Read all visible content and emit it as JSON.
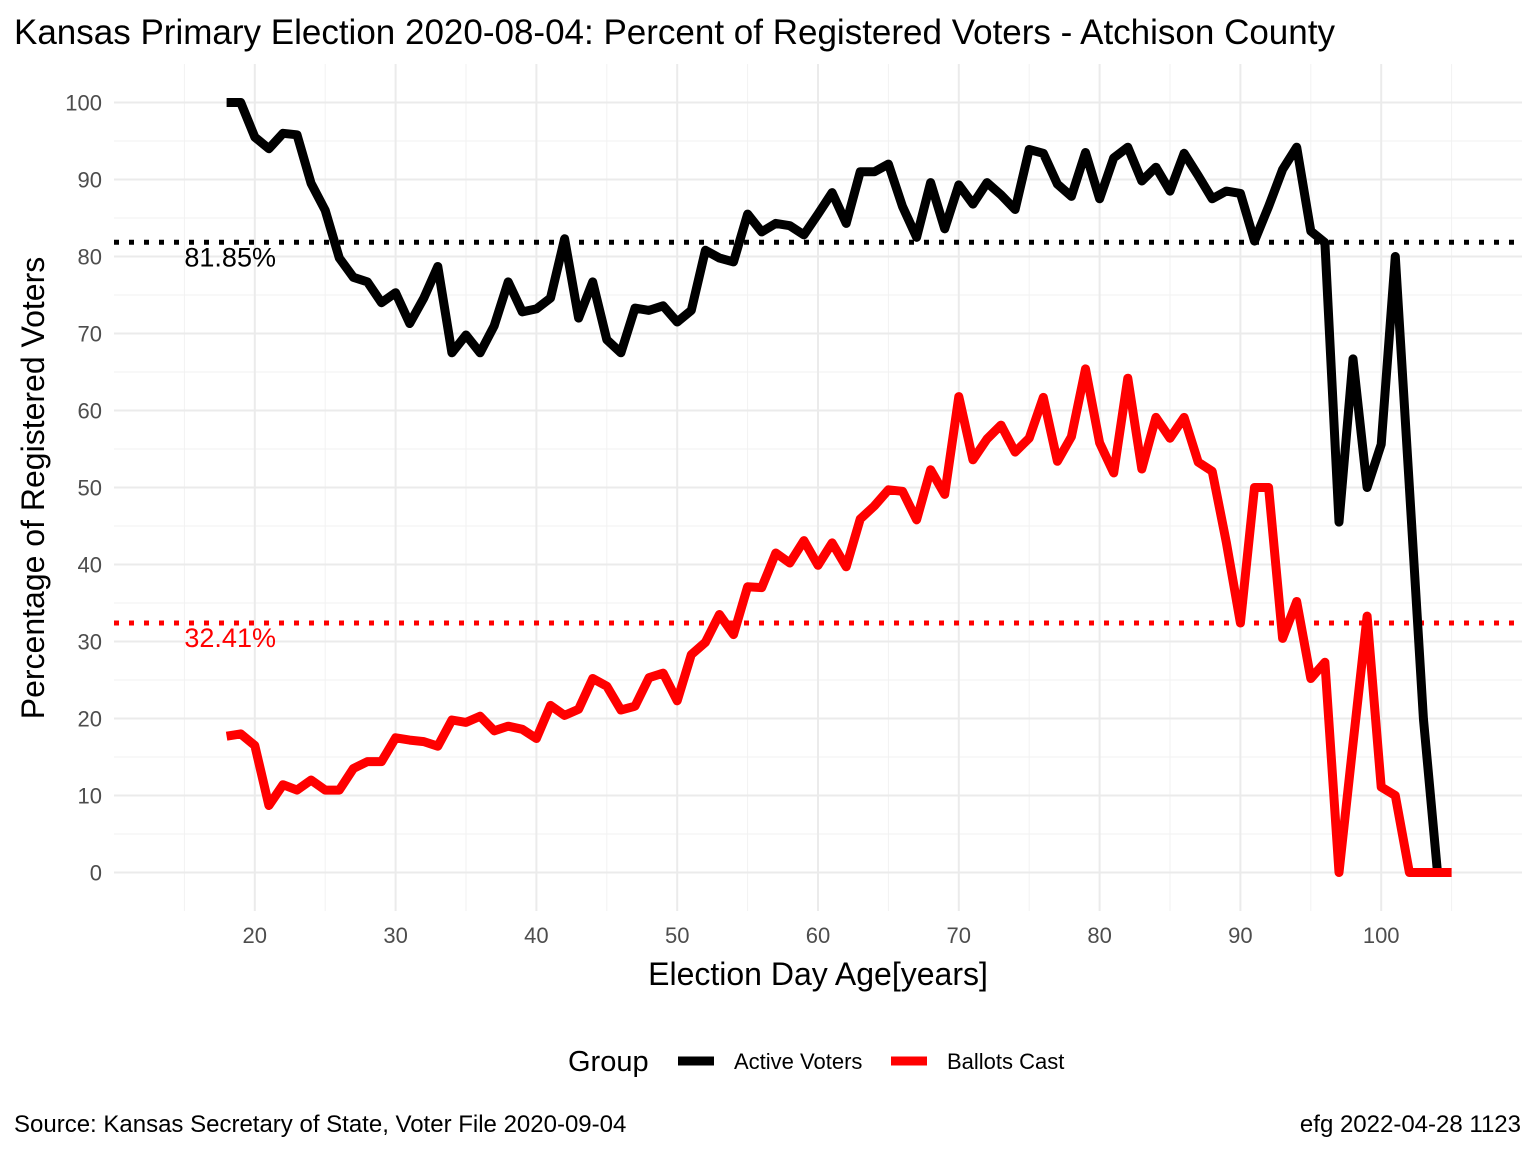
{
  "chart_data": {
    "type": "line",
    "title": "Kansas Primary Election 2020-08-04:  Percent of Registered Voters - Atchison County",
    "xlabel": "Election Day Age[years]",
    "ylabel": "Percentage of Registered Voters",
    "xlim": [
      10,
      110
    ],
    "ylim": [
      -5,
      105
    ],
    "xticks": [
      20,
      30,
      40,
      50,
      60,
      70,
      80,
      90,
      100
    ],
    "yticks": [
      0,
      10,
      20,
      30,
      40,
      50,
      60,
      70,
      80,
      90,
      100
    ],
    "grid": true,
    "legend": {
      "title": "Group",
      "position": "bottom"
    },
    "series": [
      {
        "name": "Active Voters",
        "color": "#000000",
        "x": [
          18,
          19,
          20,
          21,
          22,
          23,
          24,
          25,
          26,
          27,
          28,
          29,
          30,
          31,
          32,
          33,
          34,
          35,
          36,
          37,
          38,
          39,
          40,
          41,
          42,
          43,
          44,
          45,
          46,
          47,
          48,
          49,
          50,
          51,
          52,
          53,
          54,
          55,
          56,
          57,
          58,
          59,
          60,
          61,
          62,
          63,
          64,
          65,
          66,
          67,
          68,
          69,
          70,
          71,
          72,
          73,
          74,
          75,
          76,
          77,
          78,
          79,
          80,
          81,
          82,
          83,
          84,
          85,
          86,
          87,
          88,
          89,
          90,
          91,
          92,
          93,
          94,
          95,
          96,
          97,
          98,
          99,
          100,
          101,
          102,
          103,
          104
        ],
        "y": [
          100,
          100,
          95.5,
          94,
          96,
          95.8,
          89.5,
          86,
          79.8,
          77.3,
          76.7,
          74,
          75.3,
          71.3,
          74.6,
          78.7,
          67.5,
          69.8,
          67.5,
          71,
          76.7,
          72.8,
          73.2,
          74.6,
          82.3,
          72,
          76.7,
          69.2,
          67.5,
          73.3,
          73,
          73.6,
          71.5,
          73,
          80.8,
          79.8,
          79.3,
          85.5,
          83.2,
          84.3,
          84,
          82.8,
          85.5,
          88.3,
          84.3,
          91,
          91,
          92,
          86.5,
          82.5,
          89.6,
          83.6,
          89.3,
          86.8,
          89.6,
          88,
          86.1,
          93.9,
          93.4,
          89.4,
          87.8,
          93.5,
          87.5,
          92.8,
          94.2,
          89.8,
          91.6,
          88.5,
          93.4,
          90.5,
          87.5,
          88.5,
          88.2,
          82,
          86.5,
          91.3,
          94.2,
          83.3,
          81.8,
          45.5,
          66.7,
          50,
          55.6,
          80,
          50,
          20,
          0
        ]
      },
      {
        "name": "Ballots Cast",
        "color": "#ff0000",
        "x": [
          18,
          19,
          20,
          21,
          22,
          23,
          24,
          25,
          26,
          27,
          28,
          29,
          30,
          31,
          32,
          33,
          34,
          35,
          36,
          37,
          38,
          39,
          40,
          41,
          42,
          43,
          44,
          45,
          46,
          47,
          48,
          49,
          50,
          51,
          52,
          53,
          54,
          55,
          56,
          57,
          58,
          59,
          60,
          61,
          62,
          63,
          64,
          65,
          66,
          67,
          68,
          69,
          70,
          71,
          72,
          73,
          74,
          75,
          76,
          77,
          78,
          79,
          80,
          81,
          82,
          83,
          84,
          85,
          86,
          87,
          88,
          89,
          90,
          91,
          92,
          93,
          94,
          95,
          96,
          97,
          98,
          99,
          100,
          101,
          102,
          103,
          104,
          105
        ],
        "y": [
          17.7,
          18,
          16.5,
          8.7,
          11.4,
          10.7,
          12,
          10.7,
          10.7,
          13.5,
          14.4,
          14.4,
          17.5,
          17.2,
          17,
          16.4,
          19.8,
          19.5,
          20.3,
          18.4,
          19,
          18.6,
          17.4,
          21.7,
          20.4,
          21.2,
          25.2,
          24.2,
          21.1,
          21.6,
          25.3,
          25.9,
          22.3,
          28.3,
          29.9,
          33.5,
          30.9,
          37.1,
          37,
          41.5,
          40.2,
          43.1,
          39.9,
          42.8,
          39.7,
          45.9,
          47.6,
          49.7,
          49.5,
          45.8,
          52.3,
          49.1,
          61.8,
          53.6,
          56.3,
          58.1,
          54.6,
          56.4,
          61.7,
          53.4,
          56.6,
          65.4,
          55.8,
          51.9,
          64.2,
          52.4,
          59.1,
          56.4,
          59.1,
          53.3,
          52.1,
          42.9,
          32.4,
          50,
          50,
          30.4,
          35.2,
          25.2,
          27.3,
          0,
          16.7,
          33.3,
          11.1,
          10,
          0,
          0,
          0,
          0
        ]
      }
    ],
    "reference_lines": [
      {
        "value": 81.85,
        "label": "81.85%",
        "color": "#000000"
      },
      {
        "value": 32.41,
        "label": "32.41%",
        "color": "#ff0000"
      }
    ]
  },
  "caption": {
    "source": "Source:  Kansas Secretary of State, Voter File  2020-09-04",
    "credit": "efg 2022-04-28 1123"
  }
}
